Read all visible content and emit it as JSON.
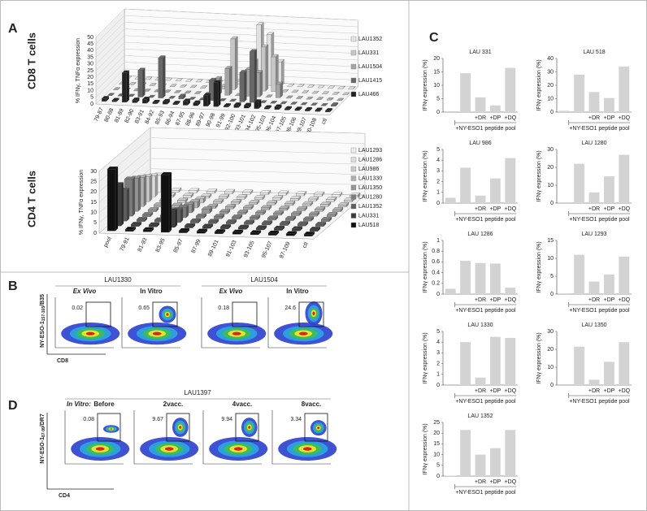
{
  "chart_data": [
    {
      "type": "bar3d",
      "title": "CD8 T cells",
      "ylabel": "% IFNγ, TNFα expression",
      "categories": [
        "79-87",
        "80-88",
        "81-89",
        "82-90",
        "83-91",
        "84-92",
        "85-93",
        "86-94",
        "87-95",
        "88-96",
        "89-97",
        "90-98",
        "91-99",
        "92-100",
        "93-101",
        "94-102",
        "95-103",
        "96-104",
        "97-105",
        "98-106",
        "99-107",
        "100-108",
        "ctl"
      ],
      "series": [
        {
          "name": "LAU1352",
          "color": "#e2e2e2",
          "values": [
            0,
            0,
            0,
            0,
            0,
            0,
            0,
            0,
            0,
            0,
            0,
            2,
            10,
            45,
            38,
            18,
            0,
            0,
            0,
            0,
            0,
            0,
            0
          ]
        },
        {
          "name": "LAU331",
          "color": "#c6c6c6",
          "values": [
            0,
            0,
            0,
            0,
            0,
            0,
            0,
            0,
            0,
            0,
            2,
            38,
            0,
            22,
            33,
            26,
            0,
            0,
            0,
            0,
            0,
            0,
            0
          ]
        },
        {
          "name": "LAU1504",
          "color": "#a4a4a4",
          "values": [
            0,
            0,
            0,
            0,
            0,
            0,
            0,
            0,
            0,
            0,
            12,
            20,
            0,
            20,
            18,
            0,
            10,
            0,
            0,
            0,
            0,
            0,
            0
          ]
        },
        {
          "name": "LAU1415",
          "color": "#676767",
          "values": [
            0,
            0,
            0,
            20,
            0,
            30,
            0,
            2,
            0,
            0,
            15,
            0,
            0,
            22,
            38,
            0,
            0,
            0,
            0,
            0,
            0,
            0,
            1
          ]
        },
        {
          "name": "LAU466",
          "color": "#222222",
          "values": [
            2,
            1,
            22,
            2,
            3,
            1,
            2,
            1,
            3,
            2,
            8,
            18,
            1,
            2,
            2,
            5,
            1,
            2,
            1,
            1,
            1,
            1,
            1
          ]
        }
      ],
      "ylim": [
        0,
        50
      ],
      "yticks": [
        0,
        5,
        10,
        15,
        20,
        25,
        30,
        35,
        40,
        45,
        50
      ],
      "grid": true
    },
    {
      "type": "bar3d",
      "title": "CD4 T cells",
      "ylabel": "% IFNγ, TNFα expression",
      "categories": [
        "pool",
        "79-91",
        "81-93",
        "83-95",
        "85-97",
        "87-99",
        "89-101",
        "91-103",
        "93-105",
        "95-107",
        "97-109",
        "ctl"
      ],
      "series": [
        {
          "name": "LAU1293",
          "color": "#ececec",
          "values": [
            8,
            1,
            1,
            1,
            1,
            1,
            1,
            1,
            1,
            1,
            1,
            1
          ]
        },
        {
          "name": "LAU1286",
          "color": "#dcdcdc",
          "values": [
            10,
            1,
            1,
            1,
            1,
            1,
            1,
            1,
            1,
            1,
            1,
            1
          ]
        },
        {
          "name": "LAU986",
          "color": "#c8c8c8",
          "values": [
            12,
            1,
            1,
            2,
            1,
            1,
            1,
            1,
            1,
            1,
            1,
            1
          ]
        },
        {
          "name": "LAU1330",
          "color": "#b0b0b0",
          "values": [
            14,
            1,
            1,
            3,
            1,
            1,
            1,
            1,
            1,
            1,
            1,
            1
          ]
        },
        {
          "name": "LAU1350",
          "color": "#969696",
          "values": [
            16,
            1,
            1,
            4,
            2,
            1,
            1,
            1,
            1,
            1,
            1,
            1
          ]
        },
        {
          "name": "LAU1280",
          "color": "#7c7c7c",
          "values": [
            18,
            1,
            1,
            5,
            1,
            1,
            1,
            1,
            1,
            1,
            1,
            1
          ]
        },
        {
          "name": "LAU1352",
          "color": "#5e5e5e",
          "values": [
            15,
            1,
            1,
            6,
            1,
            1,
            1,
            1,
            1,
            1,
            1,
            1
          ]
        },
        {
          "name": "LAU331",
          "color": "#3c3c3c",
          "values": [
            20,
            1,
            1,
            8,
            1,
            1,
            1,
            1,
            1,
            1,
            1,
            1
          ]
        },
        {
          "name": "LAU518",
          "color": "#111111",
          "values": [
            30,
            1,
            1,
            28,
            1,
            1,
            1,
            1,
            1,
            1,
            1,
            1
          ]
        }
      ],
      "ylim": [
        0,
        30
      ],
      "yticks": [
        0,
        5,
        10,
        15,
        20,
        25,
        30
      ],
      "grid": true
    },
    {
      "type": "bar",
      "title": "LAU 331",
      "ylabel": "IFNγ expression (%)",
      "categories": [
        null,
        null,
        "+DR",
        "+DP",
        "+DQ"
      ],
      "group_label": "+NY-ESO1 peptide pool",
      "values": [
        0,
        14.5,
        5.5,
        2.5,
        16.5
      ],
      "ylim": [
        0,
        20
      ],
      "yticks": [
        0,
        5,
        10,
        15,
        20
      ],
      "color": "#d3d3d3"
    },
    {
      "type": "bar",
      "title": "LAU 518",
      "ylabel": "IFNγ expression (%)",
      "categories": [
        null,
        null,
        "+DR",
        "+DP",
        "+DQ"
      ],
      "group_label": "+NY-ESO1 peptide pool",
      "values": [
        1,
        28,
        15,
        10.5,
        34
      ],
      "ylim": [
        0,
        40
      ],
      "yticks": [
        0,
        10,
        20,
        30,
        40
      ],
      "color": "#d3d3d3"
    },
    {
      "type": "bar",
      "title": "LAU 986",
      "ylabel": "IFNγ expression (%)",
      "categories": [
        null,
        null,
        "+DR",
        "+DP",
        "+DQ"
      ],
      "group_label": "+NY-ESO1 peptide pool",
      "values": [
        0.5,
        3.3,
        0.7,
        2.3,
        4.2
      ],
      "ylim": [
        0,
        5
      ],
      "yticks": [
        0,
        1,
        2,
        3,
        4,
        5
      ],
      "color": "#d3d3d3"
    },
    {
      "type": "bar",
      "title": "LAU 1280",
      "ylabel": "IFNγ expression (%)",
      "categories": [
        null,
        null,
        "+DR",
        "+DP",
        "+DQ"
      ],
      "group_label": "+NY-ESO1 peptide pool",
      "values": [
        0.5,
        22,
        6,
        15,
        27
      ],
      "ylim": [
        0,
        30
      ],
      "yticks": [
        0,
        10,
        20,
        30
      ],
      "color": "#d3d3d3"
    },
    {
      "type": "bar",
      "title": "LAU 1286",
      "ylabel": "IFNγ expression (%)",
      "categories": [
        null,
        null,
        "+DR",
        "+DP",
        "+DQ"
      ],
      "group_label": "+NY-ESO1 peptide pool",
      "values": [
        0.1,
        0.62,
        0.58,
        0.57,
        0.12
      ],
      "ylim": [
        0,
        1
      ],
      "yticks": [
        0,
        0.2,
        0.4,
        0.6,
        0.8,
        1
      ],
      "color": "#d3d3d3"
    },
    {
      "type": "bar",
      "title": "LAU 1293",
      "ylabel": "IFNγ expression (%)",
      "categories": [
        null,
        null,
        "+DR",
        "+DP",
        "+DQ"
      ],
      "group_label": "+NY-ESO1 peptide pool",
      "values": [
        0.2,
        11,
        3.5,
        5.5,
        10.5
      ],
      "ylim": [
        0,
        15
      ],
      "yticks": [
        0,
        5,
        10,
        15
      ],
      "color": "#d3d3d3"
    },
    {
      "type": "bar",
      "title": "LAU 1330",
      "ylabel": "IFNγ expression (%)",
      "categories": [
        null,
        null,
        "+DR",
        "+DP",
        "+DQ"
      ],
      "group_label": "+NY-ESO1 peptide pool",
      "values": [
        0,
        4,
        0.7,
        4.5,
        4.4
      ],
      "ylim": [
        0,
        5
      ],
      "yticks": [
        0,
        1,
        2,
        3,
        4,
        5
      ],
      "color": "#d3d3d3"
    },
    {
      "type": "bar",
      "title": "LAU 1350",
      "ylabel": "IFNγ expression (%)",
      "categories": [
        null,
        null,
        "+DR",
        "+DP",
        "+DQ"
      ],
      "group_label": "+NY-ESO1 peptide pool",
      "values": [
        0,
        21.5,
        3,
        13,
        24
      ],
      "ylim": [
        0,
        30
      ],
      "yticks": [
        0,
        10,
        20,
        30
      ],
      "color": "#d3d3d3"
    },
    {
      "type": "bar",
      "title": "LAU 1352",
      "ylabel": "IFNγ expression (%)",
      "categories": [
        null,
        null,
        "+DR",
        "+DP",
        "+DQ"
      ],
      "group_label": "+NY-ESO1 peptide pool",
      "values": [
        0.2,
        21.5,
        10,
        13,
        21.5
      ],
      "ylim": [
        0,
        25
      ],
      "yticks": [
        0,
        5,
        10,
        15,
        20,
        25
      ],
      "color": "#d3d3d3"
    }
  ],
  "panels": {
    "a": {
      "letter": "A"
    },
    "b": {
      "letter": "B",
      "patients": [
        "LAU1330",
        "LAU1504"
      ],
      "conditions": [
        "Ex Vivo",
        "In Vitro",
        "Ex Vivo",
        "In Vitro"
      ],
      "gates": [
        "0.02",
        "0.65",
        "0.18",
        "24.6"
      ],
      "ylabel": "NY-ESO-1",
      "ylabel_sub": "157-165",
      "ylabel_end": "/B35",
      "xlabel": "CD8"
    },
    "c": {
      "letter": "C"
    },
    "d": {
      "letter": "D",
      "patient": "LAU1397",
      "prefix": "In Vitro:",
      "conditions": [
        "Before",
        "2vacc.",
        "4vacc.",
        "8vacc."
      ],
      "gates": [
        "0.08",
        "9.67",
        "9.94",
        "3.34"
      ],
      "ylabel": "NY-ESO-1",
      "ylabel_sub": "87-99",
      "ylabel_end": "/DR7",
      "xlabel": "CD4"
    }
  }
}
